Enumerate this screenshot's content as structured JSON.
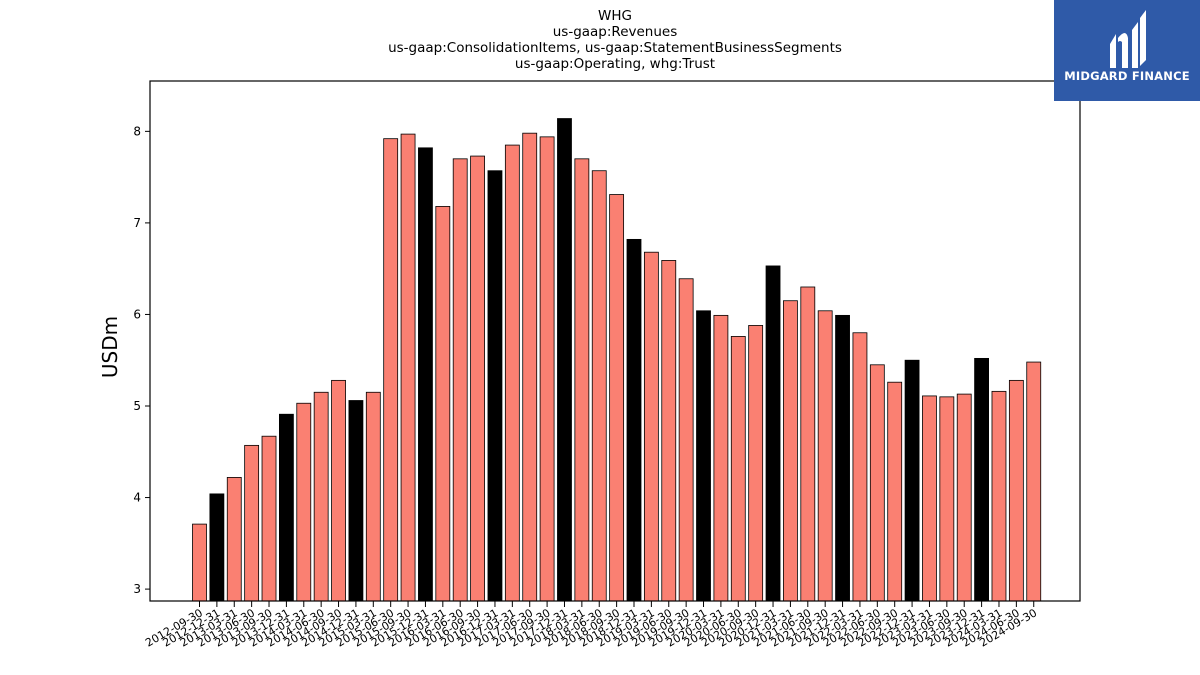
{
  "title_lines": [
    "WHG",
    "us-gaap:Revenues",
    "us-gaap:ConsolidationItems, us-gaap:StatementBusinessSegments",
    "us-gaap:Operating, whg:Trust"
  ],
  "logo": {
    "text": "MIDGARD FINANCE",
    "background": "#2f5aa8"
  },
  "colors": {
    "bar_normal": "#fa8072",
    "bar_highlight": "#000000",
    "edge": "#000000"
  },
  "chart_data": {
    "type": "bar",
    "ylabel": "USDm",
    "xlabel": "",
    "ylim": [
      2.87,
      8.55
    ],
    "yticks": [
      3,
      4,
      5,
      6,
      7,
      8
    ],
    "grid": false,
    "legend": "none",
    "categories": [
      "2012-09-30",
      "2012-12-31",
      "2013-03-31",
      "2013-06-30",
      "2013-09-30",
      "2013-12-31",
      "2014-03-31",
      "2014-06-30",
      "2014-09-30",
      "2014-12-31",
      "2015-03-31",
      "2015-06-30",
      "2015-09-30",
      "2015-12-31",
      "2016-03-31",
      "2016-06-30",
      "2016-09-30",
      "2016-12-31",
      "2017-03-31",
      "2017-06-30",
      "2017-09-30",
      "2017-12-31",
      "2018-03-31",
      "2018-06-30",
      "2018-09-30",
      "2018-12-31",
      "2019-03-31",
      "2019-06-30",
      "2019-09-30",
      "2019-12-31",
      "2020-03-31",
      "2020-06-30",
      "2020-09-30",
      "2020-12-31",
      "2021-03-31",
      "2021-06-30",
      "2021-09-30",
      "2021-12-31",
      "2022-03-31",
      "2022-06-30",
      "2022-09-30",
      "2022-12-31",
      "2023-03-31",
      "2023-06-30",
      "2023-09-30",
      "2023-12-31",
      "2024-03-31",
      "2024-06-30",
      "2024-09-30"
    ],
    "values": [
      3.71,
      4.04,
      4.22,
      4.57,
      4.67,
      4.91,
      5.03,
      5.15,
      5.28,
      5.06,
      5.15,
      7.92,
      7.97,
      7.82,
      7.18,
      7.7,
      7.73,
      7.57,
      7.85,
      7.98,
      7.94,
      8.14,
      7.7,
      7.57,
      7.31,
      6.82,
      6.68,
      6.59,
      6.39,
      6.04,
      5.99,
      5.76,
      5.88,
      6.53,
      6.15,
      6.3,
      6.04,
      5.99,
      5.8,
      5.45,
      5.26,
      5.5,
      5.11,
      5.1,
      5.13,
      5.52,
      5.16,
      5.28,
      5.48
    ],
    "highlight": [
      false,
      true,
      false,
      false,
      false,
      true,
      false,
      false,
      false,
      true,
      false,
      false,
      false,
      true,
      false,
      false,
      false,
      true,
      false,
      false,
      false,
      true,
      false,
      false,
      false,
      true,
      false,
      false,
      false,
      true,
      false,
      false,
      false,
      true,
      false,
      false,
      false,
      true,
      false,
      false,
      false,
      true,
      false,
      false,
      false,
      true,
      false,
      false,
      false
    ]
  }
}
